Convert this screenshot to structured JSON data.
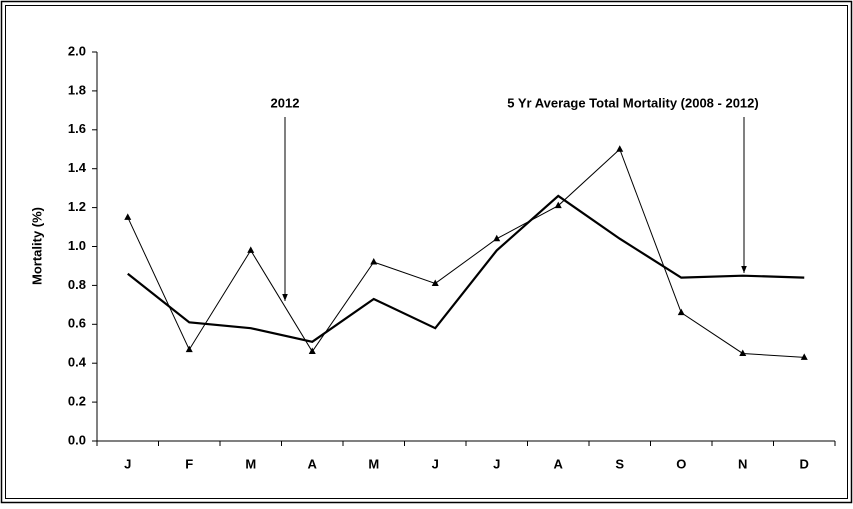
{
  "chart_data": {
    "type": "line",
    "y_label": "Mortality (%)",
    "categories": [
      "J",
      "F",
      "M",
      "A",
      "M",
      "J",
      "J",
      "A",
      "S",
      "O",
      "N",
      "D"
    ],
    "series": [
      {
        "name": "2012",
        "color": "#000000",
        "marker": "triangle",
        "values": [
          1.15,
          0.47,
          0.98,
          0.46,
          0.92,
          0.81,
          1.04,
          1.21,
          1.5,
          0.66,
          0.45,
          0.43
        ]
      },
      {
        "name": "5 Yr Average Total Mortality (2008 - 2012)",
        "color": "#000000",
        "values": [
          0.86,
          0.61,
          0.58,
          0.51,
          0.73,
          0.58,
          0.98,
          1.26,
          1.04,
          0.84,
          0.85,
          0.84
        ]
      }
    ],
    "ylim": [
      0,
      2
    ],
    "yticks": [
      {
        "value": 0,
        "label": "0.0"
      },
      0.2,
      0.4,
      0.6,
      0.8,
      {
        "value": 1,
        "label": "1.0"
      },
      1.2,
      1.4,
      1.6,
      1.8,
      {
        "value": 2,
        "label": "2.0"
      }
    ]
  }
}
